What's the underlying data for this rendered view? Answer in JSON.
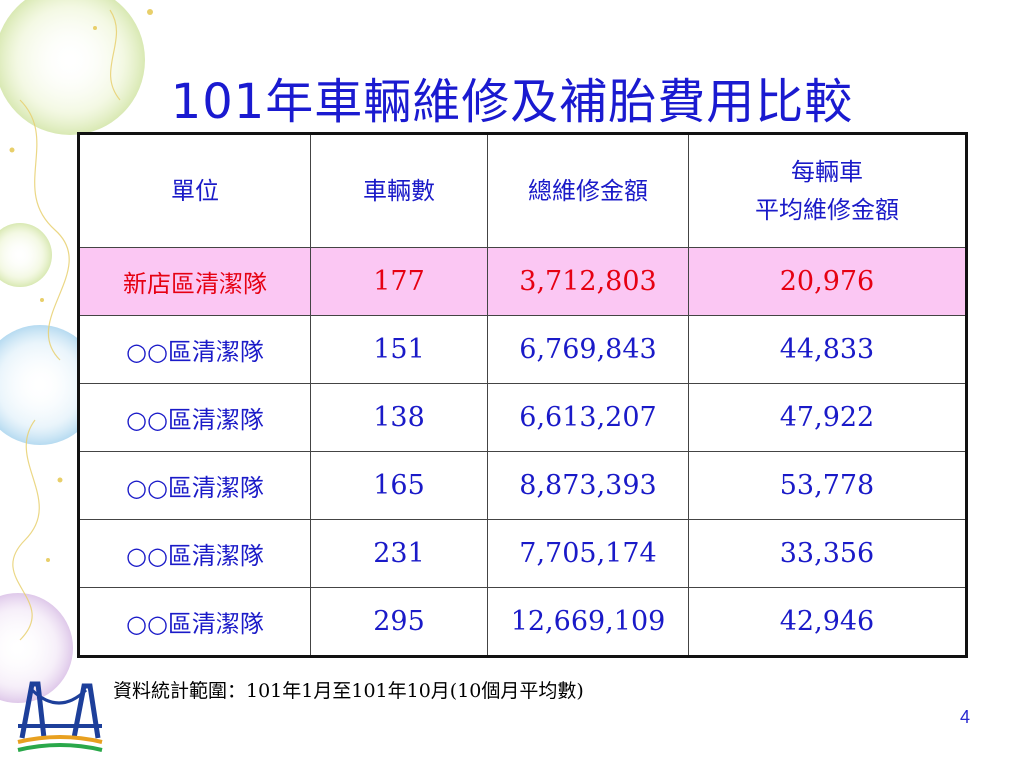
{
  "slide": {
    "title": "101年車輛維修及補胎費用比較",
    "page_number": "4",
    "footnote": "資料統計範圍：101年1月至101年10月(10個月平均數)"
  },
  "table": {
    "headers": [
      "單位",
      "車輛數",
      "總維修金額",
      "每輛車",
      "平均維修金額"
    ],
    "rows": [
      [
        "新店區清潔隊",
        "177",
        "3,712,803",
        "20,976"
      ],
      [
        "○○區清潔隊",
        "151",
        "6,769,843",
        "44,833"
      ],
      [
        "○○區清潔隊",
        "138",
        "6,613,207",
        "47,922"
      ],
      [
        "○○區清潔隊",
        "165",
        "8,873,393",
        "53,778"
      ],
      [
        "○○區清潔隊",
        "231",
        "7,705,174",
        "33,356"
      ],
      [
        "○○區清潔隊",
        "295",
        "12,669,109",
        "42,946"
      ]
    ]
  },
  "colors": {
    "title": "#1a1ad0",
    "text": "#1a1ac8",
    "highlight_text": "#e60012",
    "highlight_bg": "#fbc7f3"
  },
  "icons": {
    "logo": "bridge-logo-icon"
  }
}
